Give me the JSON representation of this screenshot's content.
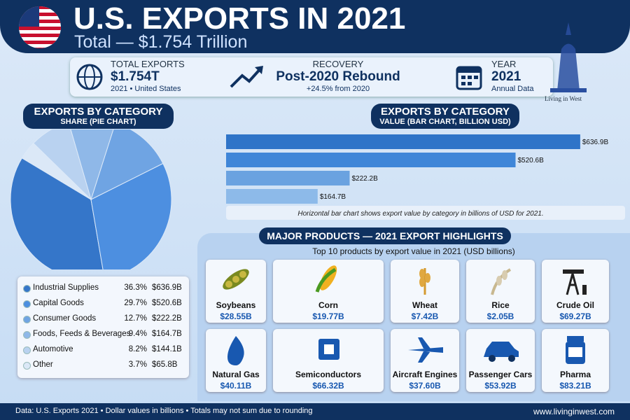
{
  "header": {
    "title": "U.S. EXPORTS IN 2021",
    "subtitle": "Total — $1.754 Trillion"
  },
  "stats": [
    {
      "label": "TOTAL EXPORTS",
      "value": "$1.754T",
      "note": "2021 • United States"
    },
    {
      "label": "RECOVERY",
      "value": "Post-2020 Rebound",
      "note": "+24.5% from 2020"
    },
    {
      "label": "YEAR",
      "value": "2021",
      "note": "Annual Data"
    }
  ],
  "watermark": "Living in West",
  "pie": {
    "type": "pie",
    "title": "EXPORTS BY CATEGORY",
    "subtitle": "SHARE (PIE CHART)",
    "categories": [
      "Industrial Supplies",
      "Capital Goods",
      "Consumer Goods",
      "Foods, Feeds & Beverages",
      "Automotive",
      "Other"
    ],
    "values": [
      36.3,
      29.7,
      12.7,
      9.4,
      8.2,
      3.7
    ],
    "value_labels": [
      "36.3%",
      "29.7%",
      "12.7%",
      "9.4%",
      "8.2%",
      "3.7%"
    ],
    "amounts": [
      636.9,
      520.6,
      222.2,
      164.7,
      144.1,
      65.8
    ],
    "amount_labels": [
      "$636.9B",
      "$520.6B",
      "$222.2B",
      "$164.7B",
      "$144.1B",
      "$65.8B"
    ],
    "colors": [
      "#3576c9",
      "#4d8fe0",
      "#6fa4e3",
      "#8fb8e8",
      "#b9d2f0",
      "#dbe8f7"
    ]
  },
  "bar": {
    "type": "bar",
    "title": "EXPORTS BY CATEGORY",
    "subtitle": "VALUE (BAR CHART, BILLION USD)",
    "values": [
      636.9,
      520.6,
      222.2,
      164.7
    ],
    "value_labels": [
      "$636.9B",
      "$520.6B",
      "$222.2B",
      "$164.7B"
    ],
    "colors": [
      "#2f74c8",
      "#3f86d8",
      "#6aa2e0",
      "#8dbae9"
    ],
    "xlim": [
      0,
      700
    ],
    "note": "Horizontal bar chart shows export value by category in billions of USD for 2021."
  },
  "products": {
    "title": "MAJOR PRODUCTS — 2021 EXPORT HIGHLIGHTS",
    "subtitle": "Top 10 products by export value in 2021 (USD billions)",
    "items": [
      {
        "name": "Soybeans",
        "value": "$28.55B"
      },
      {
        "name": "Corn",
        "value": "$19.77B"
      },
      {
        "name": "Wheat",
        "value": "$7.42B"
      },
      {
        "name": "Rice",
        "value": "$2.05B"
      },
      {
        "name": "Crude Oil",
        "value": "$69.27B"
      },
      {
        "name": "Natural Gas",
        "value": "$40.11B"
      },
      {
        "name": "Semiconductors",
        "value": "$66.32B"
      },
      {
        "name": "Aircraft Engines",
        "value": "$37.60B"
      },
      {
        "name": "Passenger Cars",
        "value": "$53.92B"
      },
      {
        "name": "Pharma",
        "value": "$83.21B"
      }
    ]
  },
  "footer": {
    "source": "Data: U.S. Exports 2021 • Dollar values in billions • Totals may not sum due to rounding",
    "url": "www.livinginwest.com"
  }
}
